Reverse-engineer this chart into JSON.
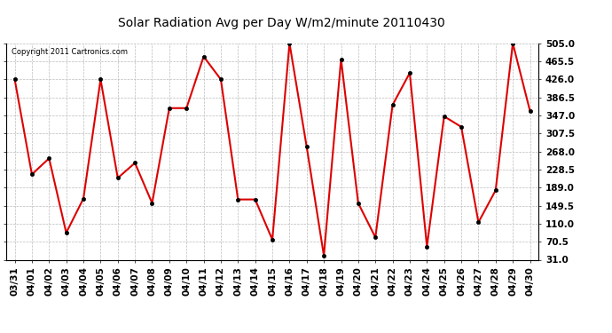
{
  "title": "Solar Radiation Avg per Day W/m2/minute 20110430",
  "copyright": "Copyright 2011 Cartronics.com",
  "dates": [
    "03/31",
    "04/01",
    "04/02",
    "04/03",
    "04/04",
    "04/05",
    "04/06",
    "04/07",
    "04/08",
    "04/09",
    "04/10",
    "04/11",
    "04/12",
    "04/13",
    "04/14",
    "04/15",
    "04/16",
    "04/17",
    "04/18",
    "04/19",
    "04/20",
    "04/21",
    "04/22",
    "04/23",
    "04/24",
    "04/25",
    "04/26",
    "04/27",
    "04/28",
    "04/29",
    "04/30"
  ],
  "values": [
    426,
    218,
    253,
    90,
    165,
    426,
    210,
    243,
    155,
    363,
    363,
    476,
    426,
    163,
    163,
    75,
    505,
    278,
    40,
    470,
    155,
    80,
    370,
    440,
    60,
    345,
    322,
    113,
    183,
    505,
    357
  ],
  "ymin": 31.0,
  "ymax": 505.0,
  "yticks": [
    31.0,
    70.5,
    110.0,
    149.5,
    189.0,
    228.5,
    268.0,
    307.5,
    347.0,
    386.5,
    426.0,
    465.5,
    505.0
  ],
  "line_color": "#dd0000",
  "marker_color": "#000000",
  "bg_color": "#ffffff",
  "plot_bg_color": "#ffffff",
  "grid_color": "#bbbbbb",
  "title_fontsize": 10,
  "tick_fontsize": 7.5,
  "copyright_fontsize": 6
}
